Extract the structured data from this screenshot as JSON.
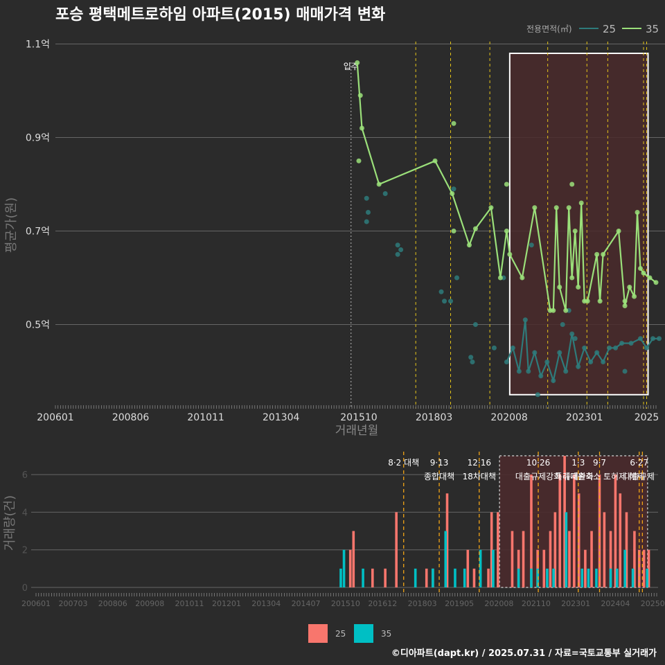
{
  "title": "포승 평택메트로하임 아파트(2015) 매매가격 변화",
  "footer": "©디아파트(dapt.kr) / 2025.07.31 / 자료=국토교통부 실거래가",
  "colors": {
    "background": "#2b2b2b",
    "series25": "#2e7b7b",
    "series35": "#9be07a",
    "bar25": "#f8766d",
    "bar35": "#00bfc4",
    "policy_line": "#e6c619",
    "vol_policy_line": "#f2a516",
    "highlight_fill": "#4a2a2c"
  },
  "chart_data": [
    {
      "type": "line",
      "ylabel": "평균가(원)",
      "xlabel": "거래년월",
      "x_ticks": [
        "200601",
        "200806",
        "201011",
        "201304",
        "201510",
        "201803",
        "202008",
        "202301",
        "2025"
      ],
      "y_ticks": [
        "0.5억",
        "0.7억",
        "0.9억",
        "1.1억"
      ],
      "ylim": [
        0.32,
        1.12
      ],
      "legend_title": "전용면적(㎡)",
      "legend_position": "top-right",
      "annotations": [
        {
          "label": "입주",
          "x": 2015.5
        }
      ],
      "policy_lines_x": [
        2017.58,
        2018.7,
        2019.96,
        2021.82,
        2023.08,
        2023.75,
        2024.9,
        2025.0
      ],
      "highlight": {
        "x": [
          2020.6,
          2025.0
        ],
        "y": [
          0.35,
          1.08
        ]
      },
      "series": [
        {
          "name": "35",
          "points": [
            [
              2015.7,
              1.06
            ],
            [
              2015.85,
              0.92
            ],
            [
              2016.4,
              0.8
            ],
            [
              2018.2,
              0.85
            ],
            [
              2018.75,
              0.78
            ],
            [
              2019.3,
              0.67
            ],
            [
              2019.5,
              0.705
            ],
            [
              2020.0,
              0.75
            ],
            [
              2020.3,
              0.6
            ],
            [
              2020.5,
              0.7
            ],
            [
              2020.6,
              0.65
            ],
            [
              2021.0,
              0.6
            ],
            [
              2021.4,
              0.75
            ],
            [
              2021.9,
              0.53
            ],
            [
              2022.0,
              0.53
            ],
            [
              2022.1,
              0.75
            ],
            [
              2022.2,
              0.58
            ],
            [
              2022.4,
              0.53
            ],
            [
              2022.5,
              0.75
            ],
            [
              2022.6,
              0.6
            ],
            [
              2022.7,
              0.7
            ],
            [
              2022.8,
              0.58
            ],
            [
              2022.9,
              0.76
            ],
            [
              2023.0,
              0.55
            ],
            [
              2023.1,
              0.55
            ],
            [
              2023.4,
              0.65
            ],
            [
              2023.5,
              0.55
            ],
            [
              2023.6,
              0.65
            ],
            [
              2024.1,
              0.7
            ],
            [
              2024.3,
              0.54
            ],
            [
              2024.45,
              0.58
            ],
            [
              2024.6,
              0.56
            ],
            [
              2024.7,
              0.74
            ],
            [
              2024.8,
              0.62
            ],
            [
              2024.9,
              0.61
            ],
            [
              2025.1,
              0.6
            ],
            [
              2025.3,
              0.59
            ]
          ],
          "extra_points": [
            [
              2015.8,
              0.99
            ],
            [
              2015.75,
              0.85
            ],
            [
              2018.8,
              0.93
            ],
            [
              2018.8,
              0.7
            ],
            [
              2020.5,
              0.8
            ],
            [
              2022.6,
              0.8
            ],
            [
              2024.3,
              0.55
            ]
          ]
        },
        {
          "name": "25",
          "points": [
            [
              2020.5,
              0.42
            ],
            [
              2020.7,
              0.45
            ],
            [
              2020.9,
              0.4
            ],
            [
              2021.1,
              0.51
            ],
            [
              2021.2,
              0.4
            ],
            [
              2021.4,
              0.44
            ],
            [
              2021.6,
              0.39
            ],
            [
              2021.8,
              0.42
            ],
            [
              2022.0,
              0.38
            ],
            [
              2022.2,
              0.44
            ],
            [
              2022.4,
              0.4
            ],
            [
              2022.6,
              0.48
            ],
            [
              2022.8,
              0.41
            ],
            [
              2023.0,
              0.45
            ],
            [
              2023.2,
              0.42
            ],
            [
              2023.4,
              0.44
            ],
            [
              2023.6,
              0.42
            ],
            [
              2023.8,
              0.45
            ],
            [
              2024.0,
              0.45
            ],
            [
              2024.2,
              0.46
            ],
            [
              2024.5,
              0.46
            ],
            [
              2024.8,
              0.47
            ],
            [
              2025.0,
              0.45
            ],
            [
              2025.2,
              0.47
            ],
            [
              2025.4,
              0.47
            ]
          ],
          "extra_points": [
            [
              2016.0,
              0.77
            ],
            [
              2016.05,
              0.74
            ],
            [
              2016.0,
              0.72
            ],
            [
              2016.6,
              0.78
            ],
            [
              2017.0,
              0.67
            ],
            [
              2017.1,
              0.66
            ],
            [
              2017.0,
              0.65
            ],
            [
              2018.4,
              0.57
            ],
            [
              2018.5,
              0.55
            ],
            [
              2018.7,
              0.55
            ],
            [
              2018.8,
              0.79
            ],
            [
              2018.9,
              0.6
            ],
            [
              2019.35,
              0.43
            ],
            [
              2019.4,
              0.42
            ],
            [
              2019.5,
              0.5
            ],
            [
              2020.1,
              0.45
            ],
            [
              2020.4,
              0.6
            ],
            [
              2021.3,
              0.67
            ],
            [
              2022.3,
              0.5
            ],
            [
              2022.5,
              0.53
            ],
            [
              2022.7,
              0.47
            ],
            [
              2024.3,
              0.4
            ],
            [
              2021.5,
              0.35
            ]
          ]
        }
      ]
    },
    {
      "type": "bar",
      "ylabel": "거래량(건)",
      "x_ticks": [
        "200601",
        "200703",
        "200806",
        "200908",
        "201011",
        "201201",
        "201304",
        "201407",
        "201510",
        "201612",
        "201803",
        "201905",
        "202008",
        "202110",
        "202301",
        "202404",
        "202507"
      ],
      "y_ticks": [
        "0",
        "2",
        "4",
        "6"
      ],
      "ylim": [
        0,
        7
      ],
      "legend_position": "bottom",
      "series": [
        {
          "name": "25",
          "bars": [
            [
              2015.9,
              2
            ],
            [
              2016.0,
              3
            ],
            [
              2016.6,
              1
            ],
            [
              2017.0,
              1
            ],
            [
              2017.35,
              4
            ],
            [
              2018.3,
              1
            ],
            [
              2018.5,
              1
            ],
            [
              2018.95,
              5
            ],
            [
              2019.6,
              2
            ],
            [
              2019.8,
              1
            ],
            [
              2020.25,
              1
            ],
            [
              2020.35,
              4
            ],
            [
              2020.55,
              4
            ],
            [
              2021.0,
              3
            ],
            [
              2021.2,
              2
            ],
            [
              2021.35,
              3
            ],
            [
              2021.6,
              6
            ],
            [
              2021.8,
              2
            ],
            [
              2022.0,
              2
            ],
            [
              2022.2,
              3
            ],
            [
              2022.35,
              4
            ],
            [
              2022.5,
              6
            ],
            [
              2022.65,
              7
            ],
            [
              2022.8,
              3
            ],
            [
              2022.95,
              6
            ],
            [
              2023.1,
              5
            ],
            [
              2023.3,
              2
            ],
            [
              2023.5,
              3
            ],
            [
              2023.75,
              6
            ],
            [
              2023.9,
              4
            ],
            [
              2024.1,
              3
            ],
            [
              2024.25,
              6
            ],
            [
              2024.4,
              5
            ],
            [
              2024.6,
              4
            ],
            [
              2024.85,
              3
            ],
            [
              2025.0,
              2
            ],
            [
              2025.15,
              2
            ],
            [
              2025.3,
              2
            ]
          ]
        },
        {
          "name": "35",
          "bars": [
            [
              2015.6,
              1
            ],
            [
              2015.7,
              2
            ],
            [
              2016.3,
              1
            ],
            [
              2017.95,
              1
            ],
            [
              2018.5,
              1
            ],
            [
              2018.9,
              3
            ],
            [
              2019.2,
              1
            ],
            [
              2019.5,
              1
            ],
            [
              2020.0,
              2
            ],
            [
              2020.4,
              2
            ],
            [
              2021.2,
              1
            ],
            [
              2021.6,
              1
            ],
            [
              2021.8,
              1
            ],
            [
              2022.1,
              1
            ],
            [
              2022.3,
              1
            ],
            [
              2022.7,
              4
            ],
            [
              2023.2,
              1
            ],
            [
              2023.4,
              1
            ],
            [
              2023.65,
              1
            ],
            [
              2024.1,
              1
            ],
            [
              2024.3,
              1
            ],
            [
              2024.55,
              2
            ],
            [
              2024.8,
              1
            ],
            [
              2025.25,
              1
            ]
          ]
        }
      ],
      "policies": [
        {
          "x": 2017.58,
          "date": "8·2 대책",
          "name": ""
        },
        {
          "x": 2018.7,
          "date": "9·13",
          "name": "종합대책"
        },
        {
          "x": 2019.96,
          "date": "12·16",
          "name": "18차대책"
        },
        {
          "x": 2021.82,
          "date": "10·26",
          "name": "대출규제강화"
        },
        {
          "x": 2023.08,
          "date": "1·3",
          "name": "규제완화"
        },
        {
          "x": 2023.75,
          "date": "9·7",
          "name": "특례대출축소 토허제 해제"
        },
        {
          "x": 2025.0,
          "date": "6·27",
          "name": "대출규제"
        },
        {
          "x": 2025.1,
          "date": "",
          "name": ""
        }
      ],
      "highlight": {
        "x": [
          2020.6,
          2025.0
        ]
      }
    }
  ]
}
